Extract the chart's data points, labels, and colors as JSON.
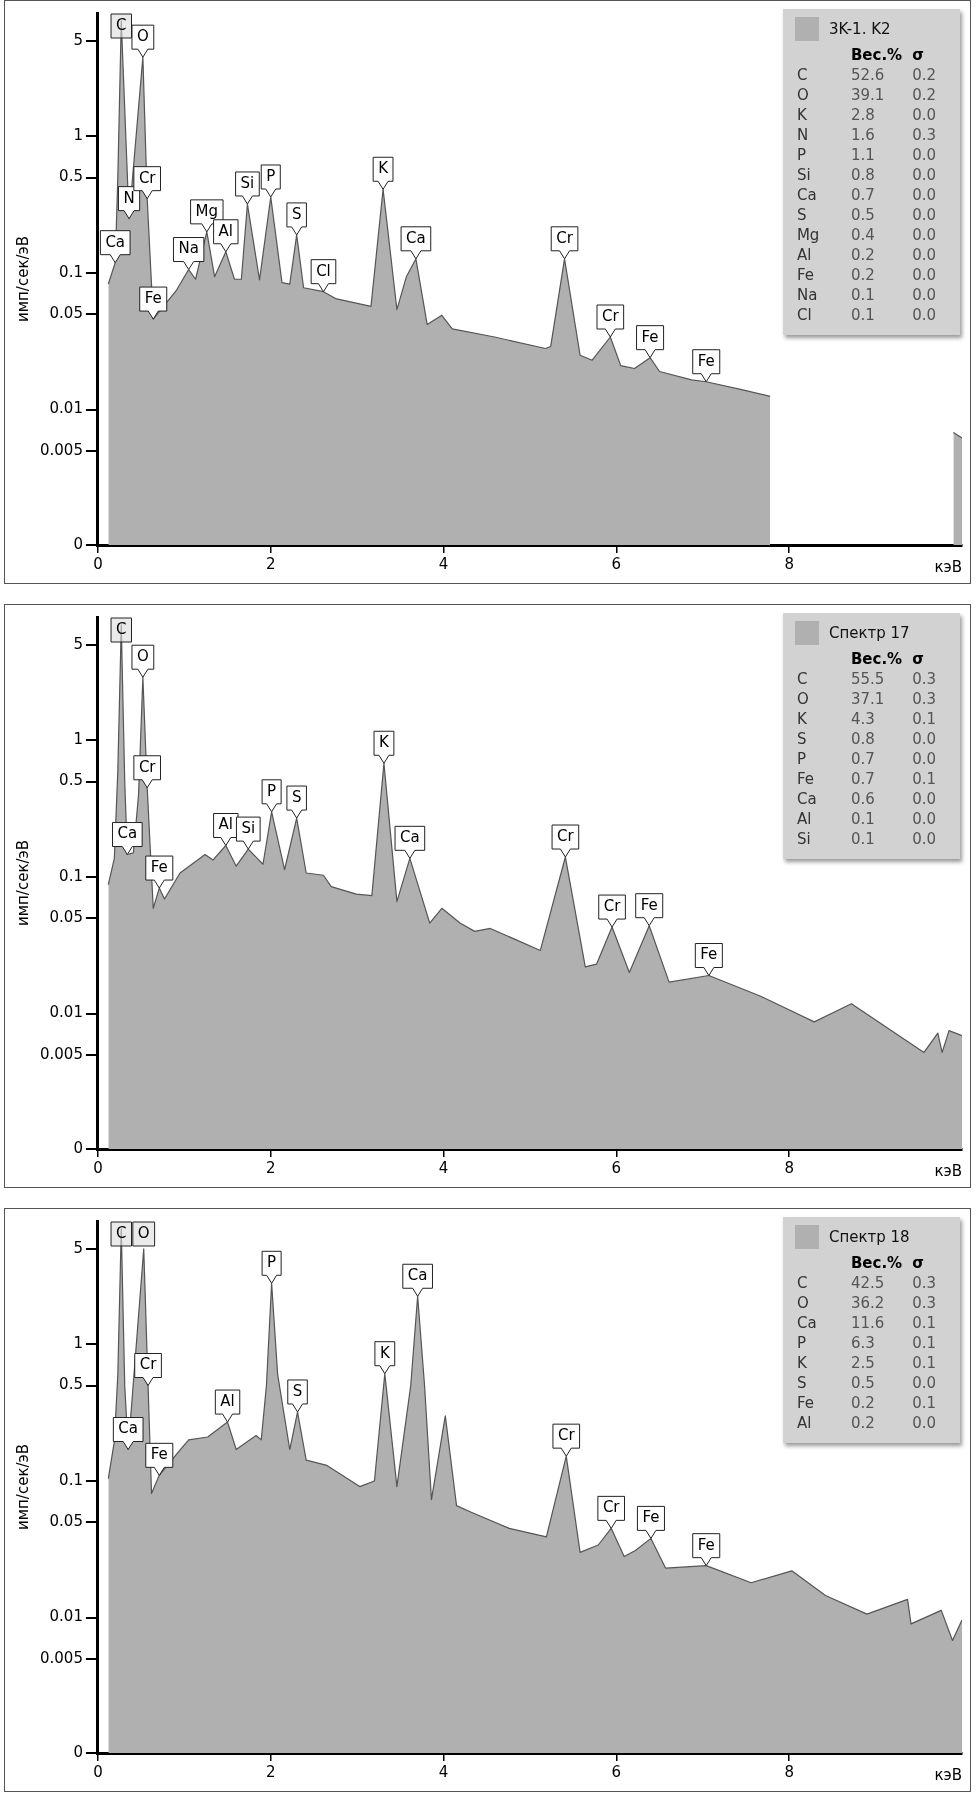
{
  "chart_data": [
    {
      "type": "area",
      "ylabel": "имп/сек/эВ",
      "xlabel": "кэВ",
      "log": true,
      "legend": "top right",
      "grid": false,
      "xlim": [
        0,
        10
      ],
      "ylim": [
        0,
        8
      ],
      "yticks": [
        0,
        0.005,
        0.01,
        0.05,
        0.1,
        0.5,
        1,
        5
      ],
      "xticks": [
        0,
        2,
        4,
        6,
        8
      ],
      "x": [
        0.12,
        0.2,
        0.23,
        0.27,
        0.36,
        0.52,
        0.57,
        0.64,
        0.91,
        1.05,
        1.13,
        1.26,
        1.35,
        1.48,
        1.58,
        1.66,
        1.73,
        1.87,
        2.0,
        2.13,
        2.22,
        2.3,
        2.38,
        2.61,
        2.75,
        3.16,
        3.3,
        3.46,
        3.57,
        3.68,
        3.81,
        3.98,
        4.1,
        4.59,
        5.18,
        5.24,
        5.4,
        5.58,
        5.72,
        5.93,
        6.05,
        6.21,
        6.39,
        6.5,
        6.87,
        7.04,
        7.45,
        7.78,
        8.8,
        9.9,
        10
      ],
      "series": [
        {
          "name": "3K-1. K2",
          "color": "#b0b0b0",
          "values": [
            0.083,
            0.119,
            0.5,
            7,
            0.25,
            3.8,
            0.35,
            0.046,
            0.075,
            0.106,
            0.09,
            0.2,
            0.094,
            0.143,
            0.09,
            0.09,
            0.32,
            0.089,
            0.36,
            0.085,
            0.083,
            0.19,
            0.078,
            0.073,
            0.065,
            0.057,
            0.41,
            0.054,
            0.094,
            0.127,
            0.042,
            0.049,
            0.039,
            0.034,
            0.028,
            0.029,
            0.127,
            0.025,
            0.023,
            0.034,
            0.021,
            0.02,
            0.024,
            0.019,
            0.0165,
            0.016,
            0.014,
            0.0125,
            null,
            0.0068,
            0.0062
          ]
        }
      ],
      "annotations": [
        "Вес.% σ",
        "C 52.6 0.2",
        "O 39.1 0.2",
        "K 2.8 0.0",
        "N 1.6 0.3",
        "P 1.1 0.0",
        "Si 0.8 0.0",
        "Ca 0.7 0.0",
        "S 0.5 0.0",
        "Mg 0.4 0.0",
        "Al 0.2 0.0",
        "Fe 0.2 0.0",
        "Na 0.1 0.0",
        "Cl 0.1 0.0",
        {
          "text": "C",
          "x": 0.27,
          "y": 7
        },
        {
          "text": "O",
          "x": 0.52,
          "y": 3.8
        },
        {
          "text": "N",
          "x": 0.36,
          "y": 0.25
        },
        {
          "text": "Cr",
          "x": 0.57,
          "y": 0.35
        },
        {
          "text": "Ca",
          "x": 0.2,
          "y": 0.119
        },
        {
          "text": "Fe",
          "x": 0.64,
          "y": 0.046
        },
        {
          "text": "Na",
          "x": 1.05,
          "y": 0.106
        },
        {
          "text": "Mg",
          "x": 1.26,
          "y": 0.2
        },
        {
          "text": "Al",
          "x": 1.48,
          "y": 0.143
        },
        {
          "text": "Si",
          "x": 1.73,
          "y": 0.32
        },
        {
          "text": "P",
          "x": 2.0,
          "y": 0.36
        },
        {
          "text": "S",
          "x": 2.3,
          "y": 0.19
        },
        {
          "text": "Cl",
          "x": 2.61,
          "y": 0.073
        },
        {
          "text": "K",
          "x": 3.3,
          "y": 0.41
        },
        {
          "text": "Ca",
          "x": 3.68,
          "y": 0.127
        },
        {
          "text": "Cr",
          "x": 5.4,
          "y": 0.127
        },
        {
          "text": "Cr",
          "x": 5.93,
          "y": 0.034
        },
        {
          "text": "Fe",
          "x": 6.39,
          "y": 0.024
        },
        {
          "text": "Fe",
          "x": 7.04,
          "y": 0.016
        }
      ]
    },
    {
      "type": "area",
      "ylabel": "имп/сек/эВ",
      "xlabel": "кэВ",
      "log": true,
      "legend": "top right",
      "grid": false,
      "xlim": [
        0,
        10
      ],
      "ylim": [
        0,
        8
      ],
      "yticks": [
        0,
        0.005,
        0.01,
        0.05,
        0.1,
        0.5,
        1,
        5
      ],
      "xticks": [
        0,
        2,
        4,
        6,
        8
      ],
      "x": [
        0.12,
        0.19,
        0.23,
        0.27,
        0.31,
        0.34,
        0.41,
        0.47,
        0.52,
        0.57,
        0.64,
        0.71,
        0.77,
        0.95,
        1.24,
        1.33,
        1.48,
        1.6,
        1.74,
        1.91,
        2.01,
        2.16,
        2.3,
        2.41,
        2.61,
        2.7,
        2.99,
        3.17,
        3.31,
        3.46,
        3.61,
        3.84,
        3.98,
        4.19,
        4.36,
        4.54,
        5.12,
        5.41,
        5.64,
        5.77,
        5.95,
        6.15,
        6.38,
        6.61,
        7.07,
        7.67,
        8.29,
        8.72,
        9.56,
        9.72,
        9.77,
        9.85,
        10
      ],
      "series": [
        {
          "name": "Спектр 17",
          "color": "#b0b0b0",
          "values": [
            0.088,
            0.137,
            0.6,
            7,
            0.5,
            0.146,
            0.15,
            0.4,
            2.9,
            0.45,
            0.059,
            0.083,
            0.069,
            0.107,
            0.146,
            0.133,
            0.17,
            0.12,
            0.16,
            0.124,
            0.3,
            0.113,
            0.27,
            0.107,
            0.103,
            0.085,
            0.075,
            0.073,
            0.68,
            0.066,
            0.137,
            0.046,
            0.059,
            0.046,
            0.04,
            0.042,
            0.029,
            0.14,
            0.022,
            0.023,
            0.043,
            0.02,
            0.044,
            0.017,
            0.019,
            0.0134,
            0.0087,
            0.0118,
            0.0052,
            0.0072,
            0.0052,
            0.0075,
            0.0069
          ]
        }
      ],
      "annotations": [
        "Вес.% σ",
        "C 55.5 0.3",
        "O 37.1 0.3",
        "K 4.3 0.1",
        "S 0.8 0.0",
        "P 0.7 0.0",
        "Fe 0.7 0.1",
        "Ca 0.6 0.0",
        "Al 0.1 0.0",
        "Si 0.1 0.0",
        {
          "text": "C",
          "x": 0.27,
          "y": 7
        },
        {
          "text": "O",
          "x": 0.52,
          "y": 2.9
        },
        {
          "text": "Cr",
          "x": 0.57,
          "y": 0.45
        },
        {
          "text": "Fe",
          "x": 0.71,
          "y": 0.083
        },
        {
          "text": "Ca",
          "x": 0.34,
          "y": 0.146
        },
        {
          "text": "Al",
          "x": 1.48,
          "y": 0.17
        },
        {
          "text": "Si",
          "x": 1.74,
          "y": 0.16
        },
        {
          "text": "P",
          "x": 2.01,
          "y": 0.3
        },
        {
          "text": "S",
          "x": 2.3,
          "y": 0.27
        },
        {
          "text": "K",
          "x": 3.31,
          "y": 0.68
        },
        {
          "text": "Ca",
          "x": 3.61,
          "y": 0.137
        },
        {
          "text": "Cr",
          "x": 5.41,
          "y": 0.14
        },
        {
          "text": "Cr",
          "x": 5.95,
          "y": 0.043
        },
        {
          "text": "Fe",
          "x": 6.38,
          "y": 0.044
        },
        {
          "text": "Fe",
          "x": 7.07,
          "y": 0.019
        }
      ]
    },
    {
      "type": "area",
      "ylabel": "имп/сек/эВ",
      "xlabel": "кэВ",
      "log": true,
      "legend": "top right",
      "grid": false,
      "xlim": [
        0,
        10
      ],
      "ylim": [
        0,
        8
      ],
      "yticks": [
        0,
        0.005,
        0.01,
        0.05,
        0.1,
        0.5,
        1,
        5
      ],
      "xticks": [
        0,
        2,
        4,
        6,
        8
      ],
      "x": [
        0.12,
        0.19,
        0.23,
        0.27,
        0.31,
        0.35,
        0.53,
        0.58,
        0.62,
        0.71,
        0.92,
        1.05,
        1.27,
        1.5,
        1.6,
        1.83,
        1.89,
        1.95,
        2.01,
        2.08,
        2.22,
        2.31,
        2.41,
        2.65,
        3.03,
        3.2,
        3.32,
        3.46,
        3.62,
        3.7,
        3.78,
        3.86,
        4.02,
        4.15,
        4.32,
        4.76,
        5.19,
        5.42,
        5.58,
        5.79,
        5.94,
        6.09,
        6.22,
        6.4,
        6.57,
        7.04,
        7.56,
        8.03,
        8.42,
        8.9,
        9.37,
        9.41,
        9.76,
        9.89,
        10
      ],
      "series": [
        {
          "name": "Спектр 18",
          "color": "#b0b0b0",
          "values": [
            0.104,
            0.195,
            0.6,
            7,
            0.5,
            0.17,
            5,
            0.5,
            0.081,
            0.11,
            0.16,
            0.2,
            0.21,
            0.27,
            0.17,
            0.215,
            0.2,
            0.5,
            2.8,
            0.6,
            0.17,
            0.32,
            0.142,
            0.13,
            0.091,
            0.1,
            0.61,
            0.091,
            0.5,
            2.25,
            0.5,
            0.073,
            0.3,
            0.066,
            0.059,
            0.045,
            0.039,
            0.152,
            0.03,
            0.034,
            0.045,
            0.028,
            0.031,
            0.038,
            0.023,
            0.024,
            0.018,
            0.022,
            0.0145,
            0.0106,
            0.0136,
            0.009,
            0.0113,
            0.0068,
            0.0096
          ]
        }
      ],
      "annotations": [
        "Вес.% σ",
        "C 42.5 0.3",
        "O 36.2 0.3",
        "Ca 11.6 0.1",
        "P 6.3 0.1",
        "K 2.5 0.1",
        "S 0.5 0.0",
        "Fe 0.2 0.1",
        "Al 0.2 0.0",
        {
          "text": "C",
          "x": 0.27,
          "y": 7
        },
        {
          "text": "O",
          "x": 0.53,
          "y": 5
        },
        {
          "text": "Cr",
          "x": 0.58,
          "y": 0.5
        },
        {
          "text": "Ca",
          "x": 0.35,
          "y": 0.17
        },
        {
          "text": "Fe",
          "x": 0.71,
          "y": 0.11
        },
        {
          "text": "Al",
          "x": 1.5,
          "y": 0.27
        },
        {
          "text": "P",
          "x": 2.01,
          "y": 2.8
        },
        {
          "text": "S",
          "x": 2.31,
          "y": 0.32
        },
        {
          "text": "K",
          "x": 3.32,
          "y": 0.61
        },
        {
          "text": "Ca",
          "x": 3.7,
          "y": 2.25
        },
        {
          "text": "Cr",
          "x": 5.42,
          "y": 0.152
        },
        {
          "text": "Cr",
          "x": 5.94,
          "y": 0.045
        },
        {
          "text": "Fe",
          "x": 6.4,
          "y": 0.038
        },
        {
          "text": "Fe",
          "x": 7.04,
          "y": 0.024
        }
      ]
    }
  ]
}
